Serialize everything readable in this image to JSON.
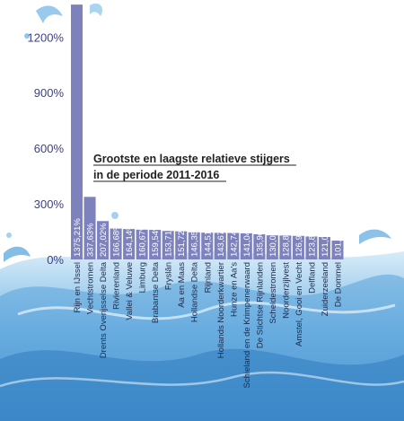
{
  "chart_data": {
    "type": "bar",
    "title_lines": [
      "Grootste en laagste relatieve stijgers",
      "in de periode 2011-2016"
    ],
    "xlabel": "",
    "ylabel": "",
    "ylim": [
      0,
      1400
    ],
    "yticks": [
      0,
      300,
      600,
      900,
      1200
    ],
    "ytick_labels": [
      "0%",
      "300%",
      "600%",
      "900%",
      "1200%"
    ],
    "grid": false,
    "legend": "none",
    "categories": [
      "Rijn en IJssel",
      "Vechtstromen",
      "Drents Overijsselse Delta",
      "Rivierenland",
      "Vallei & Veluwe",
      "Limburg",
      "Brabantse Delta",
      "Fryslân",
      "Aa en Maas",
      "Hollandse Delta",
      "Rijnland",
      "Hollands Noorderkwartier",
      "Hunze en Aa's",
      "Schieland en de Krimpenerwaard",
      "De Stichtse Rijnlanden",
      "Scheldestromen",
      "Noorderzijlvest",
      "Amstel, Gooi en Vecht",
      "Delfland",
      "Zuiderzeeland",
      "De Dommel"
    ],
    "values": [
      1375.21,
      337.63,
      207.02,
      166.68,
      164.14,
      160.67,
      159.54,
      153.71,
      151.72,
      146.35,
      144.51,
      143.67,
      142.74,
      141.04,
      135.96,
      130.02,
      128.8,
      126.99,
      123.85,
      121.03,
      101.56
    ],
    "value_labels": [
      "1375,21%",
      "337,63%",
      "207,02%",
      "166,68%",
      "164,14%",
      "160,67%",
      "159,54%",
      "153,71%",
      "151,72%",
      "146,35%",
      "144,51%",
      "143,67%",
      "142,74%",
      "141,04%",
      "135,96%",
      "130,02%",
      "128,80%",
      "126,99%",
      "123,85%",
      "121,03%",
      "101,56%"
    ],
    "colors": {
      "bar": "#7d82bd",
      "axis_text": "#3c3f8a",
      "value_text": "#ffffff",
      "title": "#222222",
      "water_dark": "#2f7cc0",
      "water_mid": "#6db0e0",
      "water_light": "#cfe6f6"
    }
  }
}
